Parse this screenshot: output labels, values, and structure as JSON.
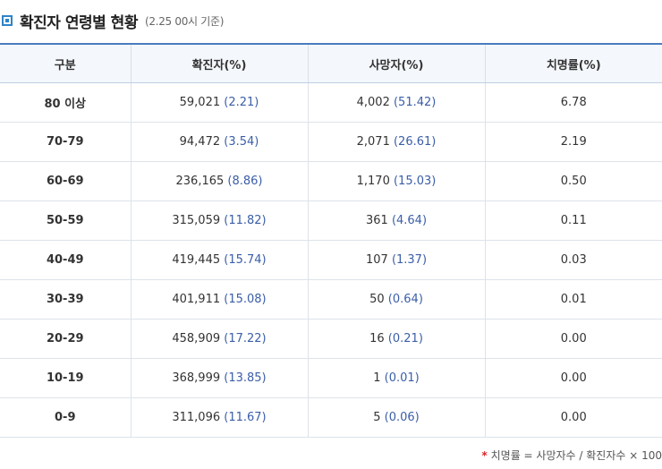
{
  "header": {
    "title": "확진자 연령별 현황",
    "subtitle": "(2.25 00시 기준)",
    "icon": "square-bullet-icon",
    "accent_color": "#2d84c8"
  },
  "table": {
    "columns": [
      "구분",
      "확진자(%)",
      "사망자(%)",
      "치명률(%)"
    ],
    "rows": [
      {
        "group": "80 이상",
        "confirmed": "59,021",
        "confirmed_pct": "(2.21)",
        "deaths": "4,002",
        "deaths_pct": "(51.42)",
        "fatality": "6.78"
      },
      {
        "group": "70-79",
        "confirmed": "94,472",
        "confirmed_pct": "(3.54)",
        "deaths": "2,071",
        "deaths_pct": "(26.61)",
        "fatality": "2.19"
      },
      {
        "group": "60-69",
        "confirmed": "236,165",
        "confirmed_pct": "(8.86)",
        "deaths": "1,170",
        "deaths_pct": "(15.03)",
        "fatality": "0.50"
      },
      {
        "group": "50-59",
        "confirmed": "315,059",
        "confirmed_pct": "(11.82)",
        "deaths": "361",
        "deaths_pct": "(4.64)",
        "fatality": "0.11"
      },
      {
        "group": "40-49",
        "confirmed": "419,445",
        "confirmed_pct": "(15.74)",
        "deaths": "107",
        "deaths_pct": "(1.37)",
        "fatality": "0.03"
      },
      {
        "group": "30-39",
        "confirmed": "401,911",
        "confirmed_pct": "(15.08)",
        "deaths": "50",
        "deaths_pct": "(0.64)",
        "fatality": "0.01"
      },
      {
        "group": "20-29",
        "confirmed": "458,909",
        "confirmed_pct": "(17.22)",
        "deaths": "16",
        "deaths_pct": "(0.21)",
        "fatality": "0.00"
      },
      {
        "group": "10-19",
        "confirmed": "368,999",
        "confirmed_pct": "(13.85)",
        "deaths": "1",
        "deaths_pct": "(0.01)",
        "fatality": "0.00"
      },
      {
        "group": "0-9",
        "confirmed": "311,096",
        "confirmed_pct": "(11.67)",
        "deaths": "5",
        "deaths_pct": "(0.06)",
        "fatality": "0.00"
      }
    ]
  },
  "footnote": {
    "mark": "*",
    "text": "치명률 = 사망자수 / 확진자수 × 100"
  }
}
